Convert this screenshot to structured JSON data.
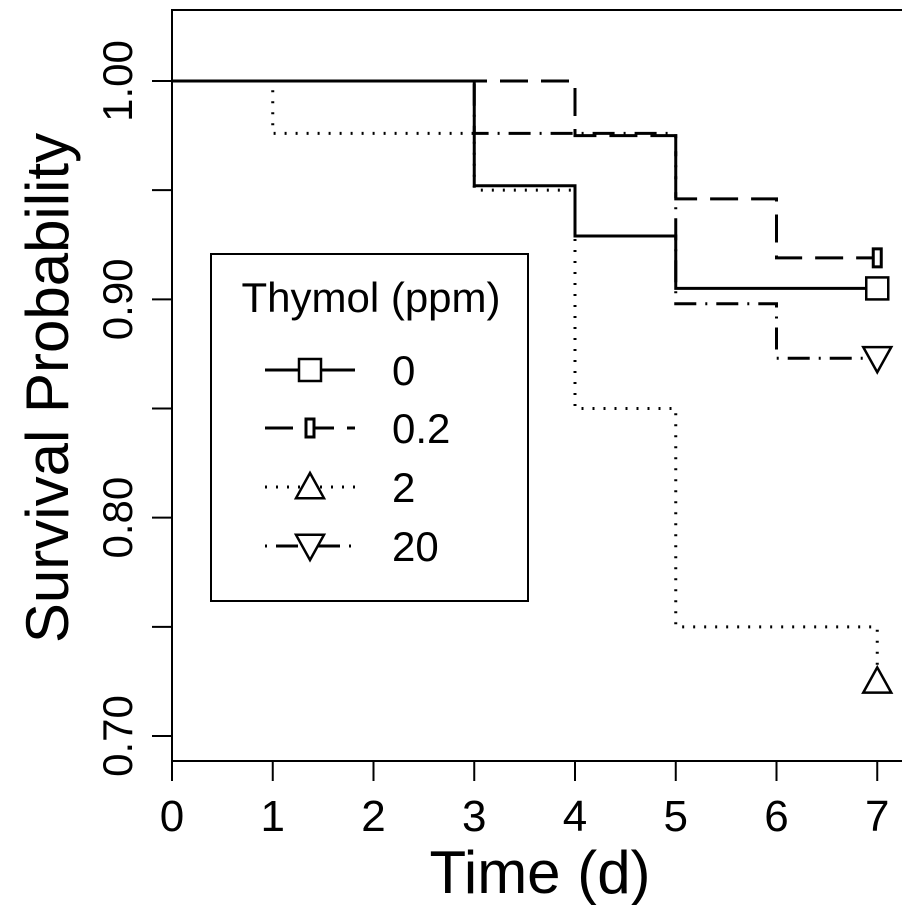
{
  "chart_data": {
    "type": "line",
    "step": true,
    "title": "",
    "xlabel": "Time (d)",
    "ylabel": "Survival Probability",
    "xlim": [
      0,
      7
    ],
    "ylim": [
      0.69,
      1.03
    ],
    "x_ticks": [
      "0",
      "1",
      "2",
      "3",
      "4",
      "5",
      "6",
      "7"
    ],
    "y_ticks": [
      "0.70",
      "0.80",
      "0.90",
      "1.00"
    ],
    "grid": false,
    "legend": {
      "title": "Thymol (ppm)",
      "placement": "center-left",
      "entries": [
        "0",
        "0.2",
        "2",
        "20"
      ]
    },
    "series": [
      {
        "name": "0",
        "line_style": "solid",
        "marker": "square",
        "x": [
          0,
          3,
          4,
          5,
          7
        ],
        "y": [
          1.0,
          0.952,
          0.929,
          0.905,
          0.905
        ]
      },
      {
        "name": "0.2",
        "line_style": "dashed",
        "marker": "square-small",
        "x": [
          0,
          4,
          5,
          6,
          7
        ],
        "y": [
          1.0,
          0.975,
          0.946,
          0.919,
          0.919
        ]
      },
      {
        "name": "2",
        "line_style": "dotted",
        "marker": "triangle-up",
        "x": [
          0,
          1,
          3,
          4,
          5,
          7
        ],
        "y": [
          1.0,
          0.976,
          0.95,
          0.85,
          0.75,
          0.725
        ]
      },
      {
        "name": "20",
        "line_style": "dotdash",
        "marker": "triangle-down",
        "x": [
          0,
          3,
          5,
          6,
          7
        ],
        "y": [
          1.0,
          0.976,
          0.898,
          0.873,
          0.873
        ]
      }
    ]
  }
}
